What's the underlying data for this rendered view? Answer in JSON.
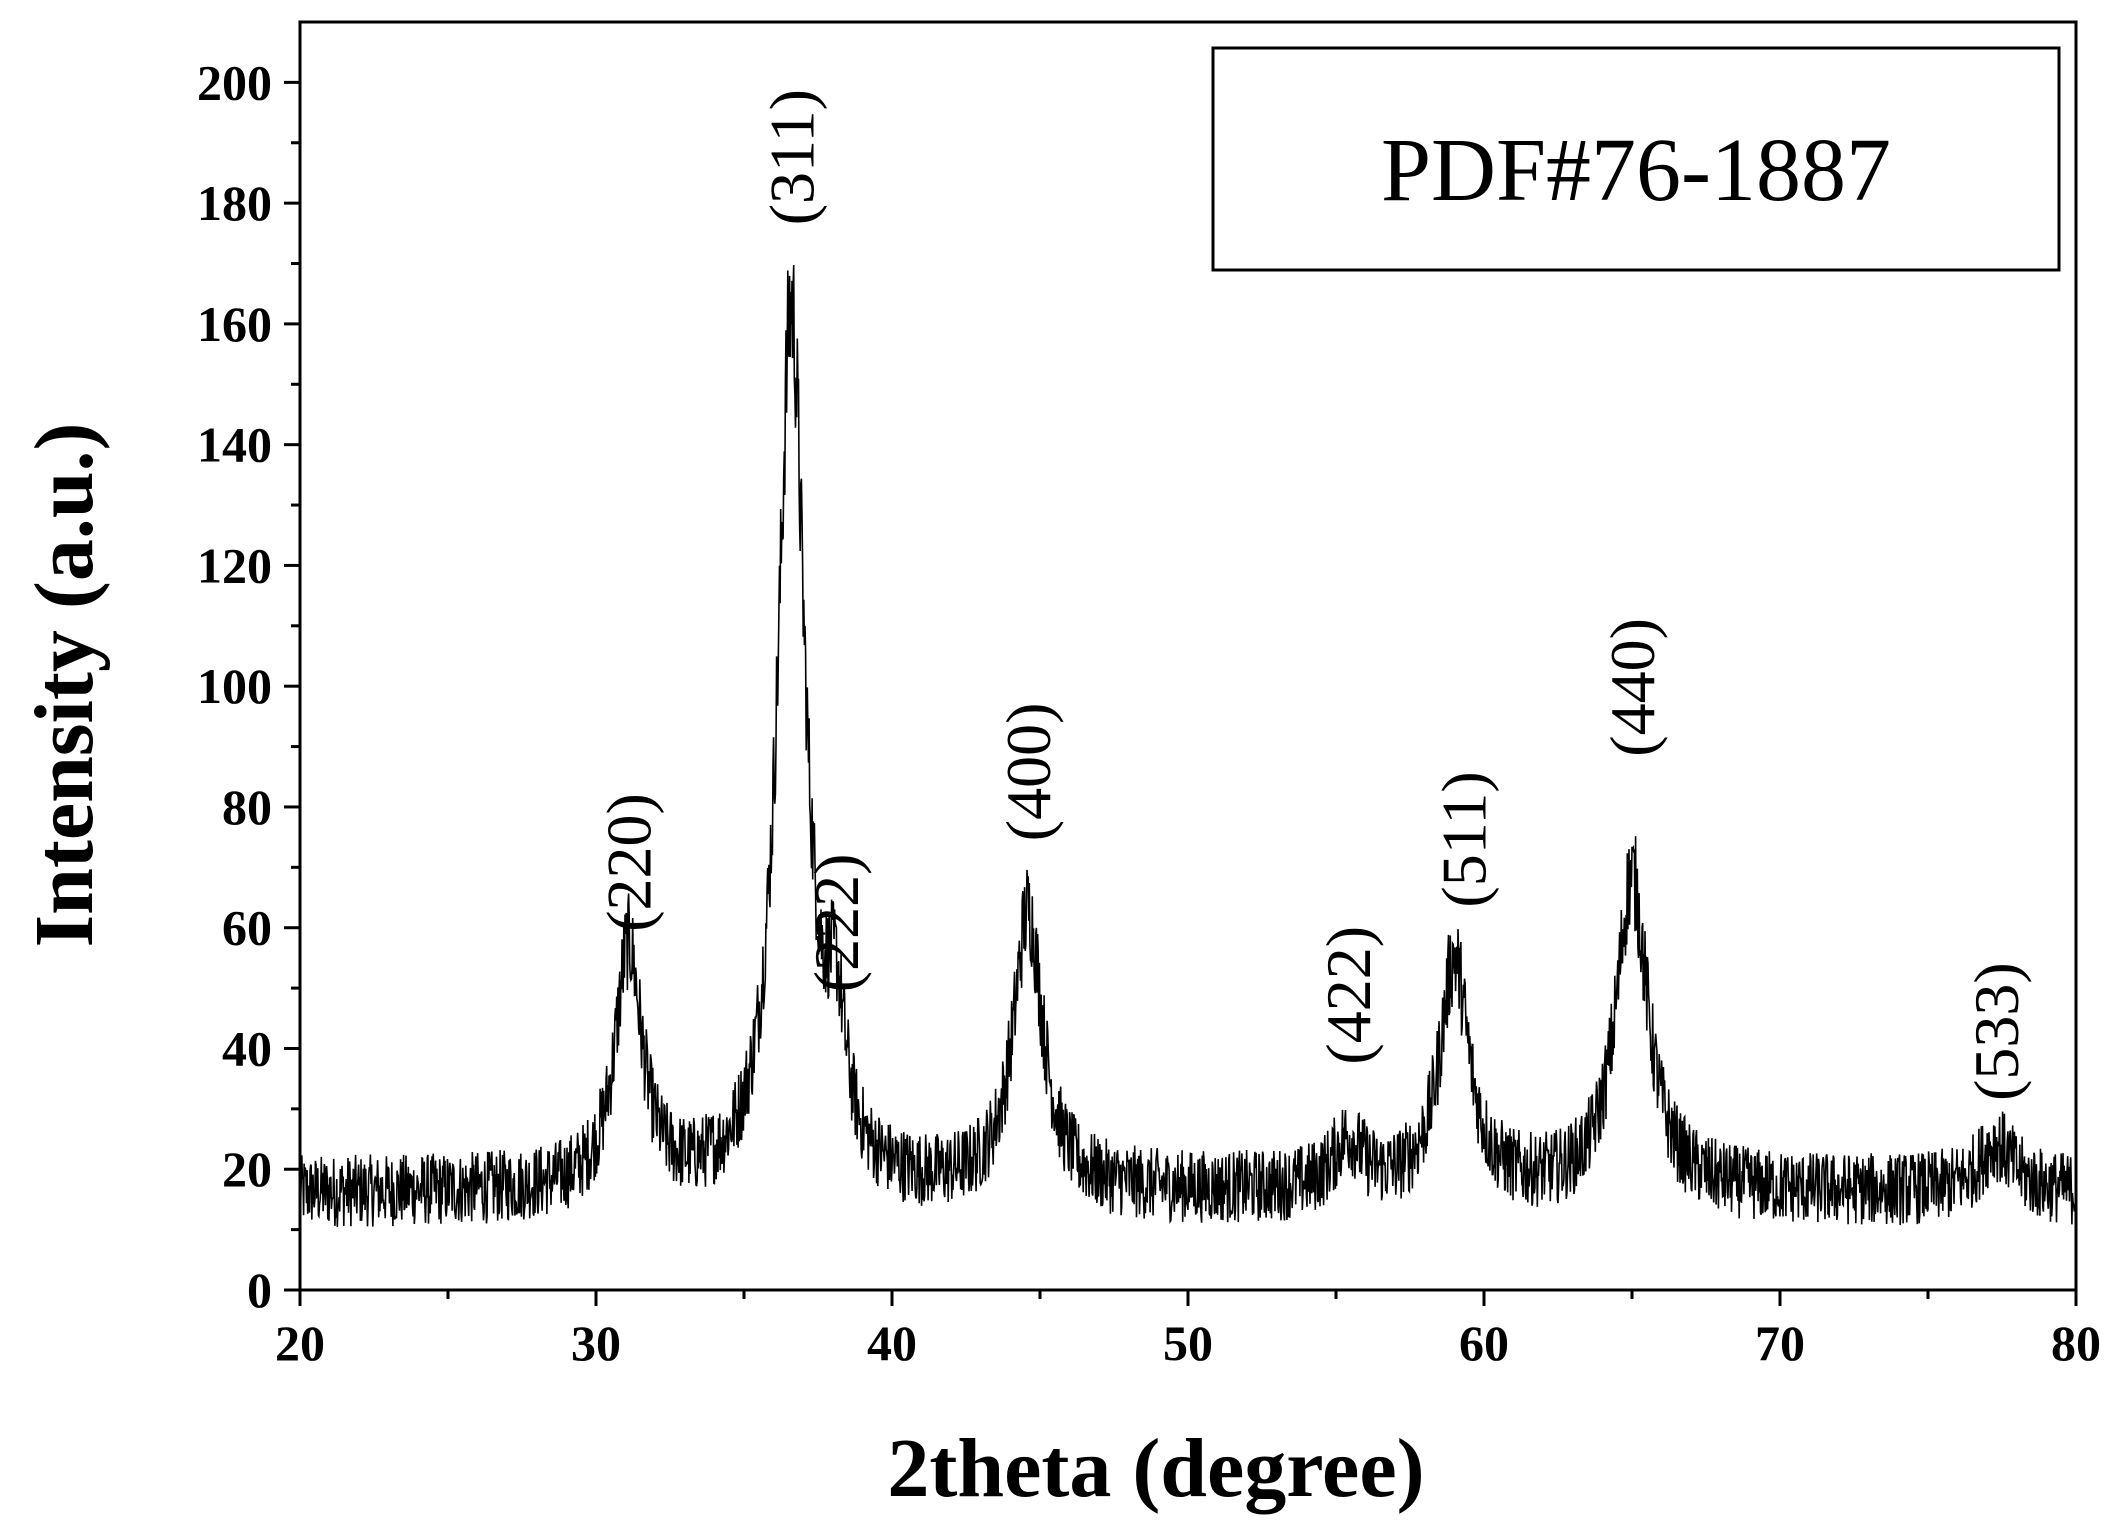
{
  "chart_data": {
    "type": "line",
    "title": "",
    "xlabel": "2theta (degree)",
    "ylabel": "Intensity (a.u.)",
    "xlim": [
      20,
      80
    ],
    "ylim": [
      0,
      210
    ],
    "x_ticks": [
      20,
      30,
      40,
      50,
      60,
      70,
      80
    ],
    "y_ticks": [
      0,
      20,
      40,
      60,
      80,
      100,
      120,
      140,
      160,
      180,
      200
    ],
    "grid": false,
    "legend": {
      "text": "PDF#76-1887",
      "placement": "top-right"
    },
    "baseline": 16,
    "noise_amplitude": 6,
    "series": [
      {
        "name": "",
        "peaks": [
          {
            "x": 31.1,
            "height": 40,
            "width": 0.55
          },
          {
            "x": 36.6,
            "height": 145,
            "width": 0.55
          },
          {
            "x": 38.1,
            "height": 22,
            "width": 0.4
          },
          {
            "x": 44.6,
            "height": 46,
            "width": 0.6
          },
          {
            "x": 55.4,
            "height": 8,
            "width": 0.6
          },
          {
            "x": 59.0,
            "height": 38,
            "width": 0.6
          },
          {
            "x": 65.0,
            "height": 52,
            "width": 0.65
          },
          {
            "x": 77.3,
            "height": 8,
            "width": 0.7
          }
        ]
      }
    ],
    "annotations": [
      {
        "text": "(220)",
        "x": 31.1,
        "y": 58
      },
      {
        "text": "(311)",
        "x": 36.6,
        "y": 175
      },
      {
        "text": "(222)",
        "x": 38.1,
        "y": 48
      },
      {
        "text": "(400)",
        "x": 44.6,
        "y": 73
      },
      {
        "text": "(422)",
        "x": 55.4,
        "y": 36
      },
      {
        "text": "(511)",
        "x": 59.3,
        "y": 62
      },
      {
        "text": "(440)",
        "x": 65.0,
        "y": 87
      },
      {
        "text": "(533)",
        "x": 77.3,
        "y": 30
      }
    ]
  }
}
